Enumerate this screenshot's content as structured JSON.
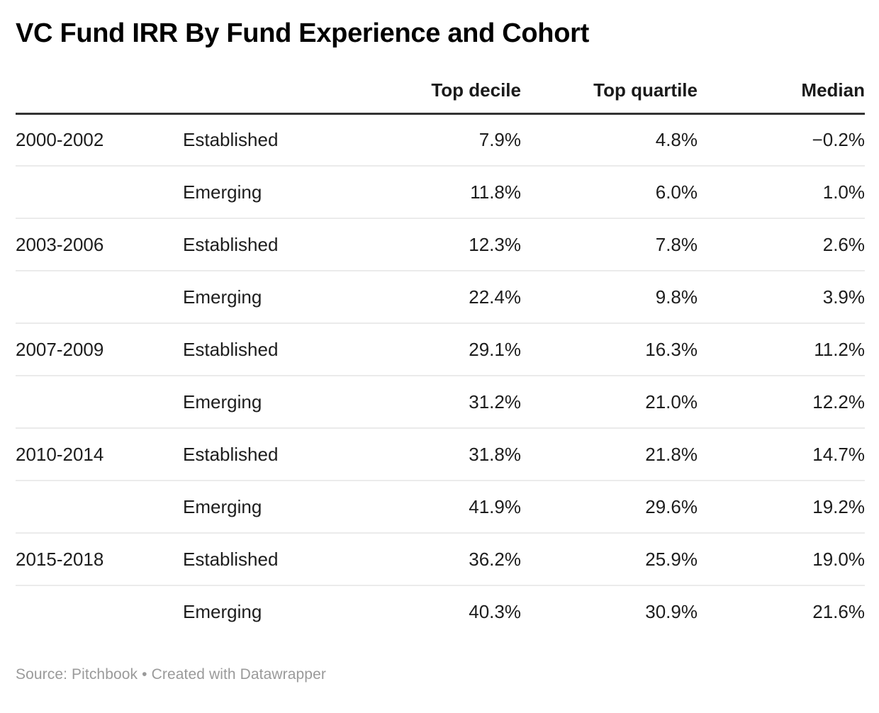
{
  "chart_data": {
    "type": "table",
    "title": "VC Fund IRR By Fund Experience and Cohort",
    "column_headers": [
      "",
      "",
      "Top decile",
      "Top quartile",
      "Median"
    ],
    "rows": [
      [
        "2000-2002",
        "Established",
        "7.9%",
        "4.8%",
        "−0.2%"
      ],
      [
        "",
        "Emerging",
        "11.8%",
        "6.0%",
        "1.0%"
      ],
      [
        "2003-2006",
        "Established",
        "12.3%",
        "7.8%",
        "2.6%"
      ],
      [
        "",
        "Emerging",
        "22.4%",
        "9.8%",
        "3.9%"
      ],
      [
        "2007-2009",
        "Established",
        "29.1%",
        "16.3%",
        "11.2%"
      ],
      [
        "",
        "Emerging",
        "31.2%",
        "21.0%",
        "12.2%"
      ],
      [
        "2010-2014",
        "Established",
        "31.8%",
        "21.8%",
        "14.7%"
      ],
      [
        "",
        "Emerging",
        "41.9%",
        "29.6%",
        "19.2%"
      ],
      [
        "2015-2018",
        "Established",
        "36.2%",
        "25.9%",
        "19.0%"
      ],
      [
        "",
        "Emerging",
        "40.3%",
        "30.9%",
        "21.6%"
      ]
    ],
    "layout_hints": {
      "value_alignment": "right",
      "label_alignment": "left",
      "header_rule_color": "#333333",
      "row_rule_color": "#ebebeb"
    }
  },
  "footer": {
    "source_text": "Source: Pitchbook",
    "separator": "•",
    "attribution": "Created with Datawrapper"
  },
  "colors": {
    "title_text": "#000000",
    "body_text": "#1d1d1d",
    "footer_text": "#9a9a9a",
    "background": "#ffffff"
  }
}
